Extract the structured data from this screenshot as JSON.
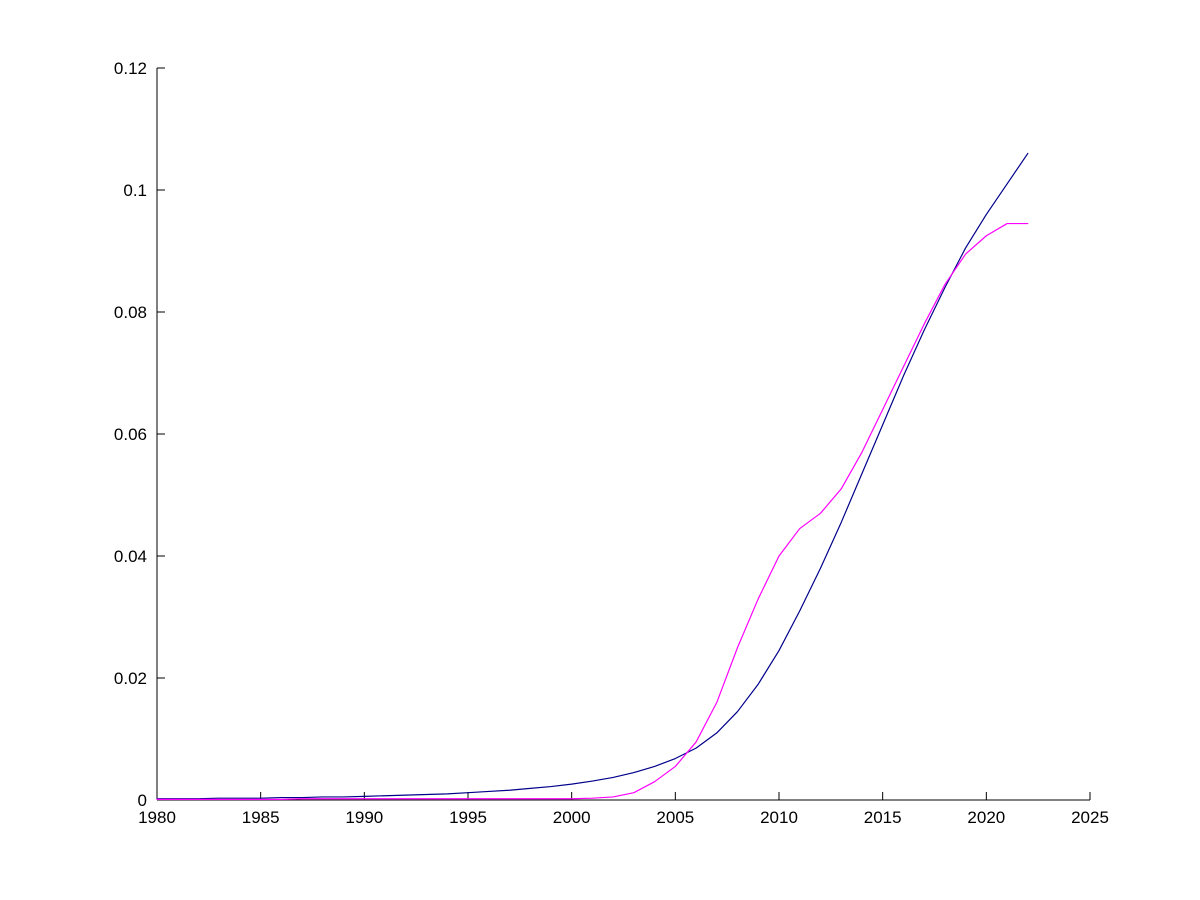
{
  "figure": {
    "background_color": "#ffffff",
    "axis_color": "#000000"
  },
  "chart_data": {
    "type": "line",
    "title": "",
    "xlabel": "",
    "ylabel": "",
    "grid": false,
    "legend_position": "none",
    "xlim": [
      1980,
      2025
    ],
    "ylim": [
      0,
      0.12
    ],
    "xticks": [
      1980,
      1985,
      1990,
      1995,
      2000,
      2005,
      2010,
      2015,
      2020,
      2025
    ],
    "xtick_labels": [
      "1980",
      "1985",
      "1990",
      "1995",
      "2000",
      "2005",
      "2010",
      "2015",
      "2020",
      "2025"
    ],
    "ytick_values": [
      0,
      0.02,
      0.04,
      0.06,
      0.08,
      0.1,
      0.12
    ],
    "ytick_labels": [
      "0",
      "0.02",
      "0.04",
      "0.06",
      "0.08",
      "0.1",
      "0.12"
    ],
    "x": [
      1980,
      1981,
      1982,
      1983,
      1984,
      1985,
      1986,
      1987,
      1988,
      1989,
      1990,
      1991,
      1992,
      1993,
      1994,
      1995,
      1996,
      1997,
      1998,
      1999,
      2000,
      2001,
      2002,
      2003,
      2004,
      2005,
      2006,
      2007,
      2008,
      2009,
      2010,
      2011,
      2012,
      2013,
      2014,
      2015,
      2016,
      2017,
      2018,
      2019,
      2020,
      2021,
      2022
    ],
    "series": [
      {
        "name": "dark-blue-line",
        "color": "#00008B",
        "values": [
          0.0002,
          0.0002,
          0.0002,
          0.0003,
          0.0003,
          0.0003,
          0.0004,
          0.0004,
          0.0005,
          0.0005,
          0.0006,
          0.0007,
          0.0008,
          0.0009,
          0.001,
          0.0012,
          0.0014,
          0.0016,
          0.0019,
          0.0022,
          0.0026,
          0.0031,
          0.0037,
          0.0045,
          0.0055,
          0.0068,
          0.0085,
          0.011,
          0.0145,
          0.019,
          0.0245,
          0.031,
          0.038,
          0.0455,
          0.0535,
          0.0615,
          0.0695,
          0.077,
          0.084,
          0.0905,
          0.096,
          0.101,
          0.106
        ]
      },
      {
        "name": "magenta-line",
        "color": "#FF00FF",
        "values": [
          0.0001,
          0.0001,
          0.0001,
          0.0001,
          0.0001,
          0.0001,
          0.0001,
          0.0002,
          0.0002,
          0.0002,
          0.0002,
          0.0002,
          0.0002,
          0.0002,
          0.0002,
          0.0002,
          0.0002,
          0.0002,
          0.0002,
          0.0002,
          0.0002,
          0.0003,
          0.0005,
          0.0012,
          0.003,
          0.0055,
          0.0095,
          0.016,
          0.025,
          0.033,
          0.04,
          0.0445,
          0.047,
          0.051,
          0.057,
          0.064,
          0.071,
          0.078,
          0.0845,
          0.0895,
          0.0925,
          0.0945,
          0.0945
        ]
      }
    ]
  }
}
